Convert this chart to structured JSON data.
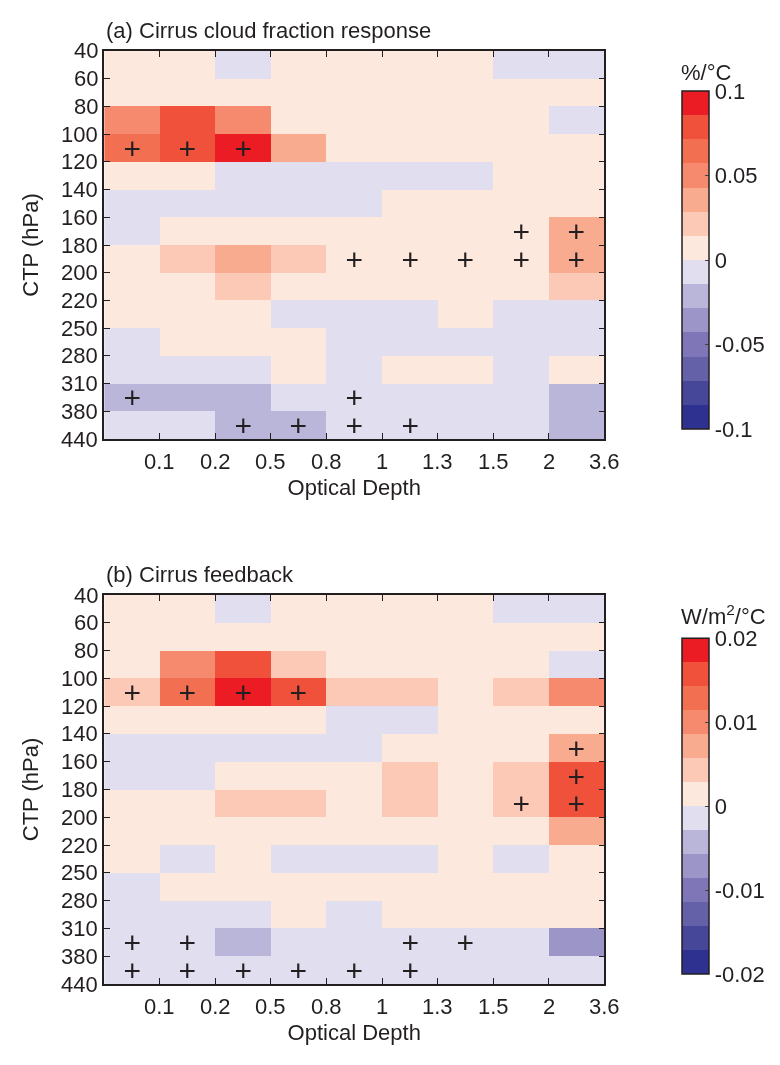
{
  "chart_data": [
    {
      "type": "heatmap",
      "title": "(a) Cirrus cloud fraction response",
      "xlabel": "Optical Depth",
      "ylabel": "CTP (hPa)",
      "clabel": "%/°C",
      "categories": [
        null,
        null,
        null,
        null,
        null,
        null,
        null,
        null,
        null
      ],
      "y_categories": [
        null,
        null,
        null,
        null,
        null,
        null,
        null,
        null,
        null,
        null,
        null,
        null,
        null,
        null
      ],
      "annotations": [
        "0.1",
        "0.2",
        "0.5",
        "0.8",
        "1",
        "1.3",
        "1.5",
        "2",
        "3.6",
        "40",
        "60",
        "80",
        "100",
        "120",
        "140",
        "160",
        "180",
        "200",
        "220",
        "250",
        "280",
        "310",
        "380",
        "440"
      ],
      "clim": [
        -0.1,
        0.1
      ],
      "cticks": [
        -0.1,
        -0.05,
        0,
        0.05,
        0.1
      ],
      "colors": [
        "#2e3190",
        "#464799",
        "#6461a8",
        "#7e76b6",
        "#9c96c8",
        "#bab6da",
        "#e0deef",
        "#fde8de",
        "#fbc9b5",
        "#f8ab8e",
        "#f58a6f",
        "#f26f52",
        "#ef513b",
        "#ec1c24"
      ],
      "cells": [
        [
          0.007,
          0.007,
          -0.007,
          0.007,
          0.007,
          0.007,
          0.007,
          -0.007,
          -0.007
        ],
        [
          0.007,
          0.007,
          0.007,
          0.007,
          0.007,
          0.007,
          0.007,
          0.007,
          0.007
        ],
        [
          0.05,
          0.079,
          0.05,
          0.007,
          0.007,
          0.007,
          0.007,
          0.007,
          -0.007
        ],
        [
          0.064,
          0.079,
          0.093,
          0.036,
          0.007,
          0.007,
          0.007,
          0.007,
          0.007
        ],
        [
          0.007,
          0.007,
          -0.007,
          -0.007,
          -0.007,
          -0.007,
          -0.007,
          0.007,
          0.007
        ],
        [
          -0.007,
          -0.007,
          -0.007,
          -0.007,
          -0.007,
          0.007,
          0.007,
          0.007,
          0.007
        ],
        [
          -0.007,
          0.007,
          0.007,
          0.007,
          0.007,
          0.007,
          0.007,
          0.007,
          0.036
        ],
        [
          0.007,
          0.021,
          0.036,
          0.021,
          0.007,
          0.007,
          0.007,
          0.007,
          0.036
        ],
        [
          0.007,
          0.007,
          0.021,
          0.007,
          0.007,
          0.007,
          0.007,
          0.007,
          0.021
        ],
        [
          0.007,
          0.007,
          0.007,
          -0.007,
          -0.007,
          -0.007,
          0.007,
          -0.007,
          -0.007
        ],
        [
          -0.007,
          0.007,
          0.007,
          0.007,
          -0.007,
          -0.007,
          -0.007,
          -0.007,
          -0.007
        ],
        [
          -0.007,
          -0.007,
          -0.007,
          0.007,
          -0.007,
          0.007,
          0.007,
          -0.007,
          0.007
        ],
        [
          -0.021,
          -0.021,
          -0.021,
          -0.007,
          -0.007,
          -0.007,
          -0.007,
          -0.007,
          -0.021
        ],
        [
          -0.007,
          -0.007,
          -0.021,
          -0.021,
          -0.007,
          -0.007,
          -0.007,
          -0.007,
          -0.021
        ]
      ],
      "cell_labels": [
        [
          null,
          null,
          null,
          null,
          null,
          null,
          null,
          null,
          null
        ],
        [
          null,
          null,
          null,
          null,
          null,
          null,
          null,
          null,
          null
        ],
        [
          null,
          null,
          null,
          null,
          null,
          null,
          null,
          null,
          null
        ],
        [
          "+",
          "+",
          "+",
          null,
          null,
          null,
          null,
          null,
          null
        ],
        [
          null,
          null,
          null,
          null,
          null,
          null,
          null,
          null,
          null
        ],
        [
          null,
          null,
          null,
          null,
          null,
          null,
          null,
          null,
          null
        ],
        [
          null,
          null,
          null,
          null,
          null,
          null,
          null,
          "+",
          "+"
        ],
        [
          null,
          null,
          null,
          null,
          "+",
          "+",
          "+",
          "+",
          "+"
        ],
        [
          null,
          null,
          null,
          null,
          null,
          null,
          null,
          null,
          null
        ],
        [
          null,
          null,
          null,
          null,
          null,
          null,
          null,
          null,
          null
        ],
        [
          null,
          null,
          null,
          null,
          null,
          null,
          null,
          null,
          null
        ],
        [
          null,
          null,
          null,
          null,
          null,
          null,
          null,
          null,
          null
        ],
        [
          "+",
          null,
          null,
          null,
          "+",
          null,
          null,
          null,
          null
        ],
        [
          null,
          null,
          "+",
          "+",
          "+",
          "+",
          null,
          null,
          null
        ]
      ]
    },
    {
      "type": "heatmap",
      "title": "(b) Cirrus feedback",
      "xlabel": "Optical Depth",
      "ylabel": "CTP (hPa)",
      "clabel": "W/m$^{2}$/°C",
      "categories": [
        null,
        null,
        null,
        null,
        null,
        null,
        null,
        null,
        null
      ],
      "y_categories": [
        null,
        null,
        null,
        null,
        null,
        null,
        null,
        null,
        null,
        null,
        null,
        null,
        null,
        null
      ],
      "annotations": [
        "0.1",
        "0.2",
        "0.5",
        "0.8",
        "1",
        "1.3",
        "1.5",
        "2",
        "3.6",
        "40",
        "60",
        "80",
        "100",
        "120",
        "140",
        "160",
        "180",
        "200",
        "220",
        "250",
        "280",
        "310",
        "380",
        "440"
      ],
      "clim": [
        -0.02,
        0.02
      ],
      "cticks": [
        -0.02,
        -0.01,
        0,
        0.01,
        0.02
      ],
      "colors": [
        "#2e3190",
        "#464799",
        "#6461a8",
        "#7e76b6",
        "#9c96c8",
        "#bab6da",
        "#e0deef",
        "#fde8de",
        "#fbc9b5",
        "#f8ab8e",
        "#f58a6f",
        "#f26f52",
        "#ef513b",
        "#ec1c24"
      ],
      "cells": [
        [
          0.0014,
          0.0014,
          -0.0014,
          0.0014,
          0.0014,
          0.0014,
          0.0014,
          -0.0014,
          -0.0014
        ],
        [
          0.0014,
          0.0014,
          0.0014,
          0.0014,
          0.0014,
          0.0014,
          0.0014,
          0.0014,
          0.0014
        ],
        [
          0.0014,
          0.01,
          0.0157,
          0.0043,
          0.0014,
          0.0014,
          0.0014,
          0.0014,
          -0.0014
        ],
        [
          0.0043,
          0.0129,
          0.0186,
          0.0157,
          0.0043,
          0.0043,
          0.0014,
          0.0043,
          0.01
        ],
        [
          0.0014,
          0.0014,
          0.0014,
          0.0014,
          -0.0014,
          -0.0014,
          0.0014,
          0.0014,
          0.0014
        ],
        [
          -0.0014,
          -0.0014,
          -0.0014,
          -0.0014,
          -0.0014,
          0.0014,
          0.0014,
          0.0014,
          0.0071
        ],
        [
          -0.0014,
          -0.0014,
          0.0014,
          0.0014,
          0.0014,
          0.0043,
          0.0014,
          0.0043,
          0.0157
        ],
        [
          0.0014,
          0.0014,
          0.0043,
          0.0043,
          0.0014,
          0.0043,
          0.0014,
          0.0043,
          0.0157
        ],
        [
          0.0014,
          0.0014,
          0.0014,
          0.0014,
          0.0014,
          0.0014,
          0.0014,
          0.0014,
          0.0071
        ],
        [
          0.0014,
          -0.0014,
          0.0014,
          -0.0014,
          -0.0014,
          -0.0014,
          0.0014,
          -0.0014,
          0.0014
        ],
        [
          -0.0014,
          0.0014,
          0.0014,
          0.0014,
          0.0014,
          0.0014,
          0.0014,
          0.0014,
          0.0014
        ],
        [
          -0.0014,
          -0.0014,
          -0.0014,
          0.0014,
          -0.0014,
          0.0014,
          0.0014,
          0.0014,
          0.0014
        ],
        [
          -0.0014,
          -0.0014,
          -0.0043,
          -0.0014,
          -0.0014,
          -0.0014,
          -0.0014,
          -0.0014,
          -0.0071
        ],
        [
          -0.0014,
          -0.0014,
          -0.0014,
          -0.0014,
          -0.0014,
          -0.0014,
          -0.0014,
          -0.0014,
          -0.0014
        ]
      ],
      "cell_labels": [
        [
          null,
          null,
          null,
          null,
          null,
          null,
          null,
          null,
          null
        ],
        [
          null,
          null,
          null,
          null,
          null,
          null,
          null,
          null,
          null
        ],
        [
          null,
          null,
          null,
          null,
          null,
          null,
          null,
          null,
          null
        ],
        [
          "+",
          "+",
          "+",
          "+",
          null,
          null,
          null,
          null,
          null
        ],
        [
          null,
          null,
          null,
          null,
          null,
          null,
          null,
          null,
          null
        ],
        [
          null,
          null,
          null,
          null,
          null,
          null,
          null,
          null,
          "+"
        ],
        [
          null,
          null,
          null,
          null,
          null,
          null,
          null,
          null,
          "+"
        ],
        [
          null,
          null,
          null,
          null,
          null,
          null,
          null,
          "+",
          "+"
        ],
        [
          null,
          null,
          null,
          null,
          null,
          null,
          null,
          null,
          null
        ],
        [
          null,
          null,
          null,
          null,
          null,
          null,
          null,
          null,
          null
        ],
        [
          null,
          null,
          null,
          null,
          null,
          null,
          null,
          null,
          null
        ],
        [
          null,
          null,
          null,
          null,
          null,
          null,
          null,
          null,
          null
        ],
        [
          "+",
          "+",
          null,
          null,
          null,
          "+",
          "+",
          null,
          null
        ],
        [
          "+",
          "+",
          "+",
          "+",
          "+",
          "+",
          null,
          null,
          null
        ]
      ]
    }
  ]
}
